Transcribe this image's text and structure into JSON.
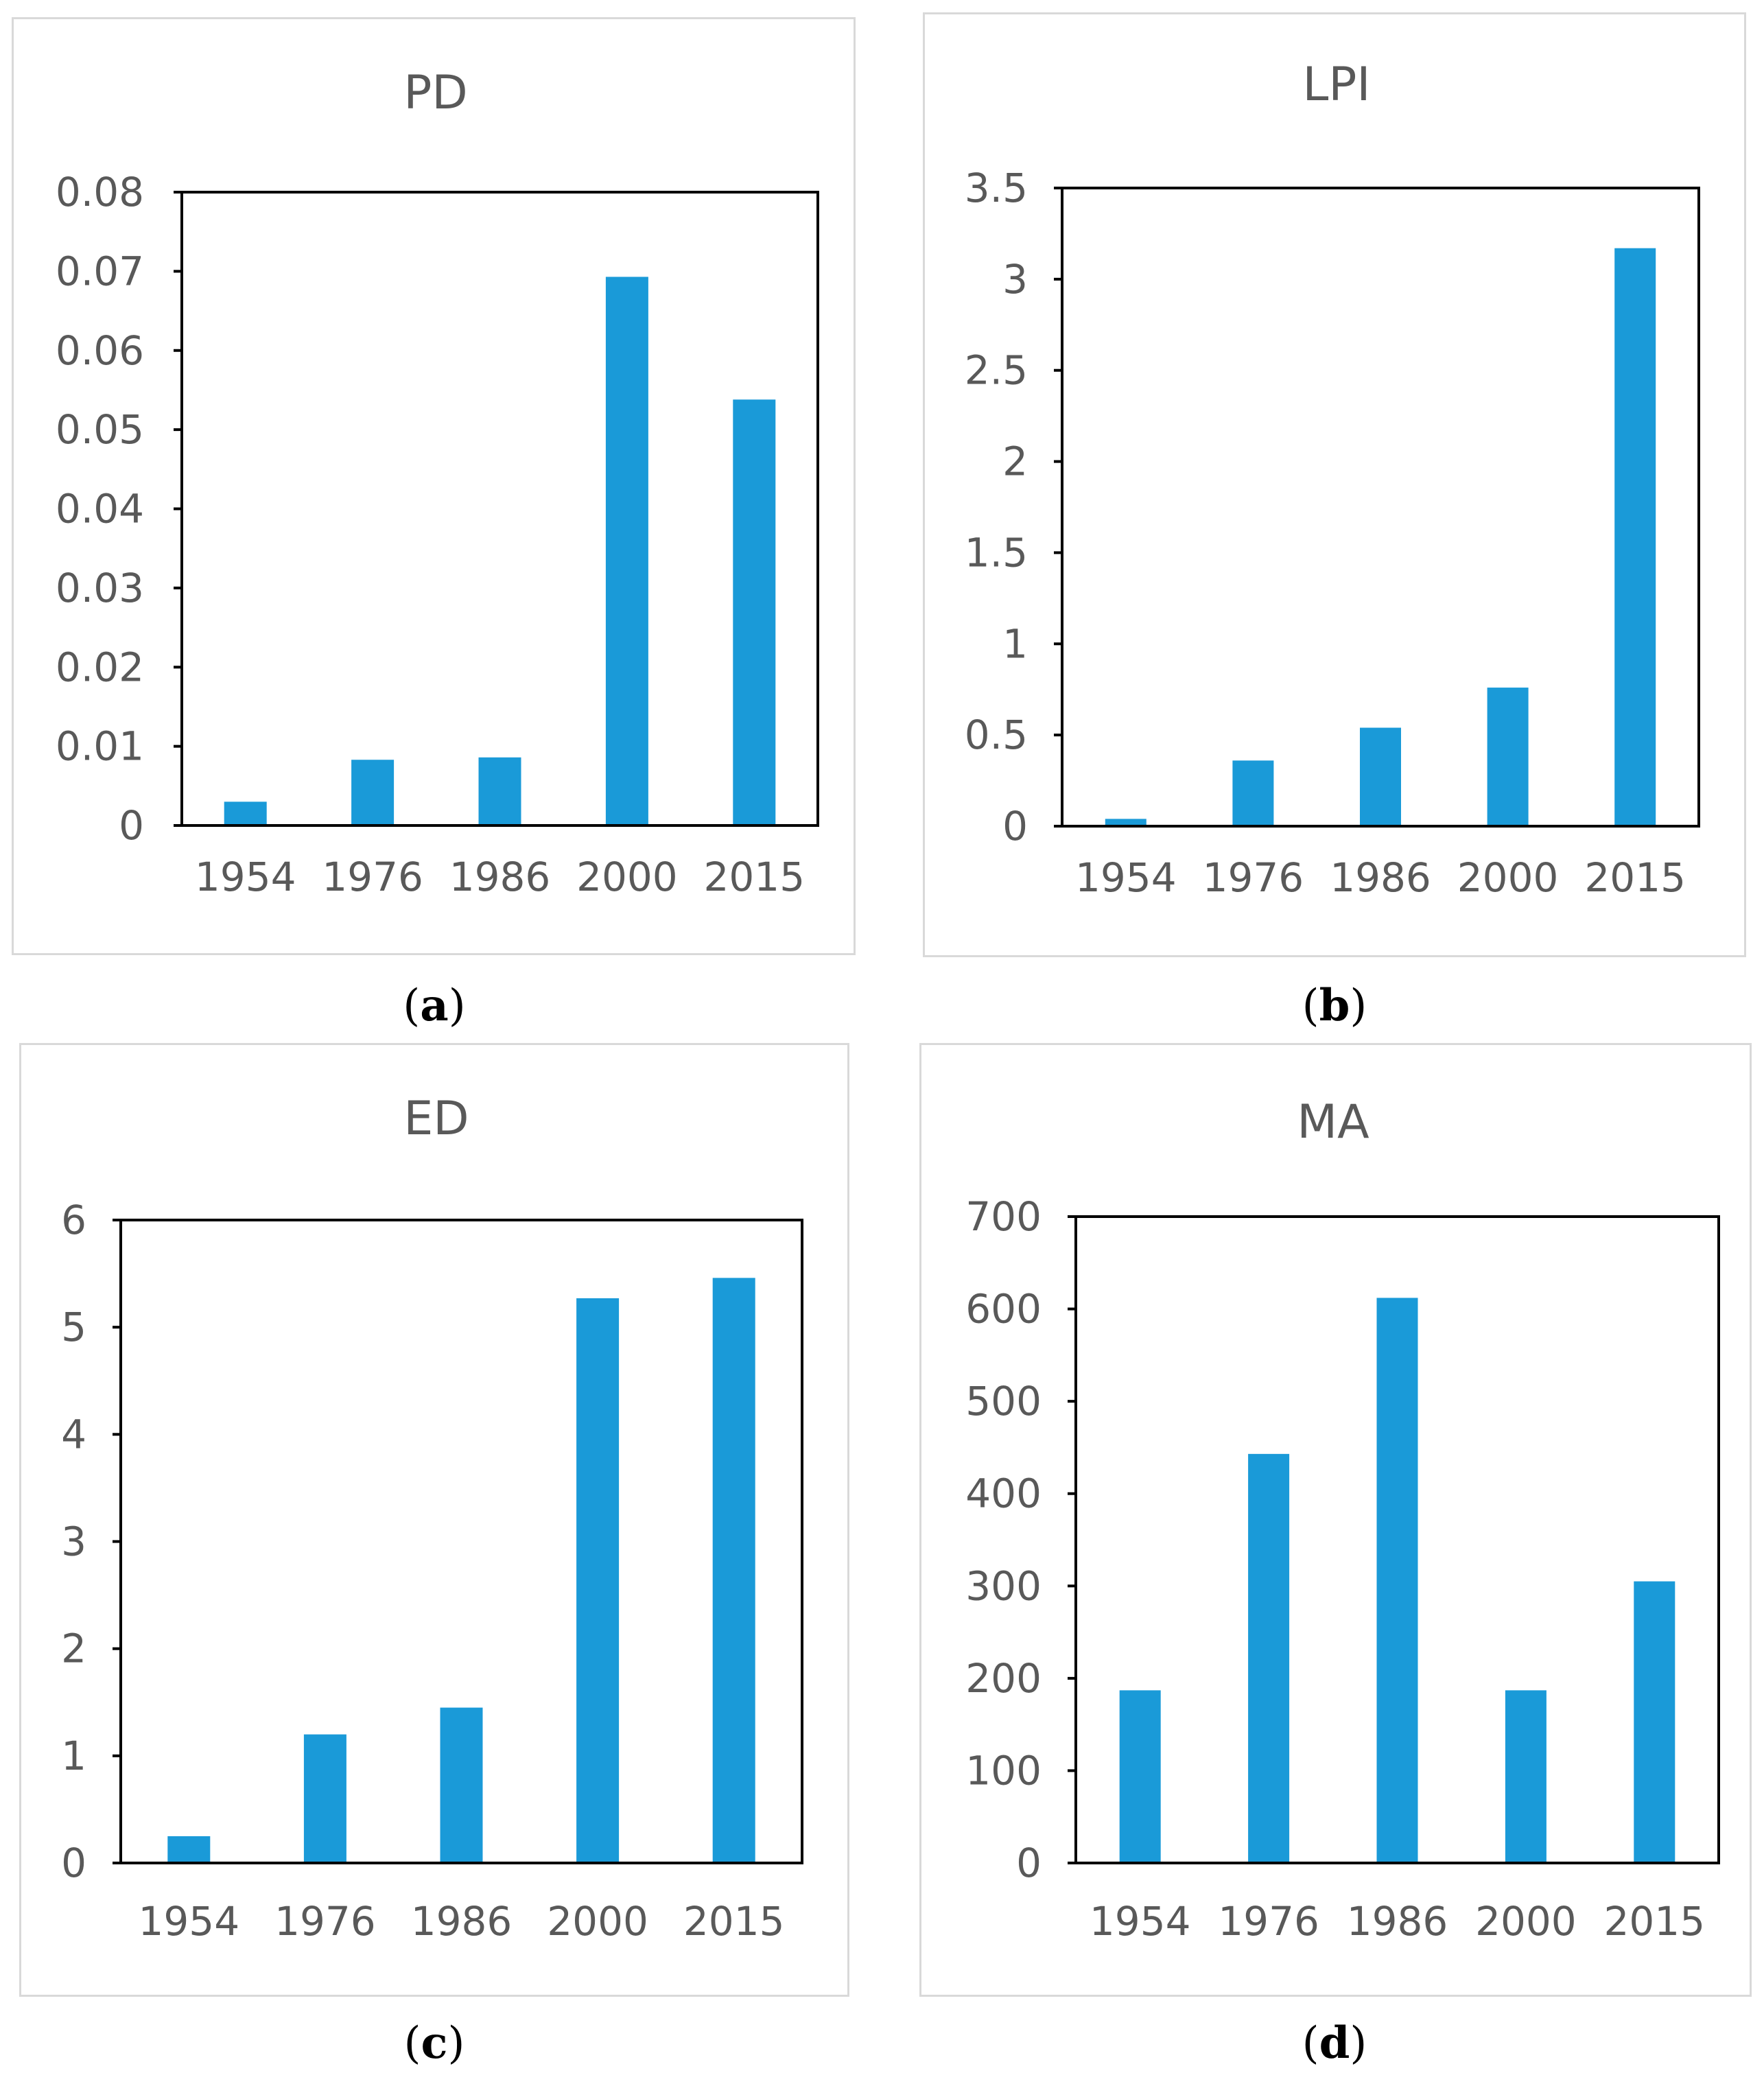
{
  "chart_data": [
    {
      "type": "bar",
      "title": "PD",
      "categories": [
        "1954",
        "1976",
        "1986",
        "2000",
        "2015"
      ],
      "values": [
        0.003,
        0.0083,
        0.0086,
        0.0693,
        0.0538
      ],
      "ylim": [
        0,
        0.08
      ],
      "yticks": [
        "0",
        "0.01",
        "0.02",
        "0.03",
        "0.04",
        "0.05",
        "0.06",
        "0.07",
        "0.08"
      ],
      "color": "#1a9ad8",
      "caption_letter": "a"
    },
    {
      "type": "bar",
      "title": "LPI",
      "categories": [
        "1954",
        "1976",
        "1986",
        "2000",
        "2015"
      ],
      "values": [
        0.04,
        0.36,
        0.54,
        0.76,
        3.17
      ],
      "ylim": [
        0,
        3.5
      ],
      "yticks": [
        "0",
        "0.5",
        "1",
        "1.5",
        "2",
        "2.5",
        "3",
        "3.5"
      ],
      "color": "#1a9ad8",
      "caption_letter": "b"
    },
    {
      "type": "bar",
      "title": "ED",
      "categories": [
        "1954",
        "1976",
        "1986",
        "2000",
        "2015"
      ],
      "values": [
        0.25,
        1.2,
        1.45,
        5.27,
        5.46
      ],
      "ylim": [
        0,
        6
      ],
      "yticks": [
        "0",
        "1",
        "2",
        "3",
        "4",
        "5",
        "6"
      ],
      "color": "#1a9ad8",
      "caption_letter": "c"
    },
    {
      "type": "bar",
      "title": "MA",
      "categories": [
        "1954",
        "1976",
        "1986",
        "2000",
        "2015"
      ],
      "values": [
        187,
        443,
        612,
        187,
        305
      ],
      "ylim": [
        0,
        700
      ],
      "yticks": [
        "0",
        "100",
        "200",
        "300",
        "400",
        "500",
        "600",
        "700"
      ],
      "color": "#1a9ad8",
      "caption_letter": "d"
    }
  ]
}
